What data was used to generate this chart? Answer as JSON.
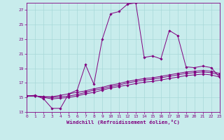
{
  "xlabel": "Windchill (Refroidissement éolien,°C)",
  "bg_color": "#c8ecec",
  "line_color": "#800080",
  "grid_color": "#a8d8d8",
  "xlim": [
    0,
    23
  ],
  "ylim": [
    13,
    28
  ],
  "xticks": [
    0,
    1,
    2,
    3,
    4,
    5,
    6,
    7,
    8,
    9,
    10,
    11,
    12,
    13,
    14,
    15,
    16,
    17,
    18,
    19,
    20,
    21,
    22,
    23
  ],
  "yticks": [
    13,
    15,
    17,
    19,
    21,
    23,
    25,
    27
  ],
  "series": [
    [
      15.2,
      15.3,
      14.8,
      13.5,
      13.5,
      15.5,
      16.0,
      19.5,
      16.8,
      23.0,
      26.5,
      26.8,
      27.8,
      28.0,
      20.5,
      20.7,
      20.3,
      24.2,
      23.5,
      19.2,
      19.1,
      19.3,
      19.1,
      17.8
    ],
    [
      15.2,
      15.2,
      15.0,
      14.8,
      14.9,
      15.0,
      15.2,
      15.5,
      15.7,
      16.0,
      16.3,
      16.5,
      16.7,
      16.9,
      17.1,
      17.2,
      17.4,
      17.6,
      17.8,
      18.0,
      18.1,
      18.2,
      18.1,
      17.8
    ],
    [
      15.2,
      15.2,
      15.1,
      15.0,
      15.1,
      15.2,
      15.4,
      15.7,
      16.0,
      16.2,
      16.5,
      16.7,
      17.0,
      17.2,
      17.4,
      17.5,
      17.7,
      17.9,
      18.1,
      18.3,
      18.4,
      18.5,
      18.4,
      18.1
    ],
    [
      15.2,
      15.2,
      15.1,
      15.1,
      15.3,
      15.5,
      15.7,
      15.9,
      16.2,
      16.4,
      16.7,
      16.9,
      17.2,
      17.4,
      17.6,
      17.7,
      17.9,
      18.1,
      18.3,
      18.5,
      18.6,
      18.7,
      18.6,
      18.3
    ]
  ]
}
